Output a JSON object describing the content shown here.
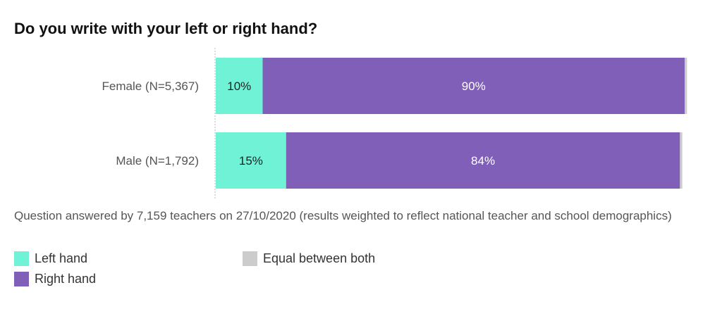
{
  "chart_data": {
    "type": "bar",
    "orientation": "horizontal",
    "stacked": true,
    "title": "Do you write with your left or right hand?",
    "categories": [
      "Female  (N=5,367)",
      "Male  (N=1,792)"
    ],
    "series": [
      {
        "name": "Left hand",
        "values": [
          10,
          15
        ],
        "labels": [
          "10%",
          "15%"
        ],
        "color": "#6ff2d6"
      },
      {
        "name": "Right hand",
        "values": [
          90,
          84
        ],
        "labels": [
          "90%",
          "84%"
        ],
        "color": "#7f5fb8"
      },
      {
        "name": "Equal between both",
        "values": [
          0.5,
          0.5
        ],
        "labels": [
          "",
          ""
        ],
        "color": "#cccccc"
      }
    ],
    "xlim": [
      0,
      100
    ],
    "legend_position": "bottom-left",
    "grid": false
  },
  "note": "Question answered by 7,159 teachers on 27/10/2020 (results weighted to reflect national teacher and school demographics)"
}
